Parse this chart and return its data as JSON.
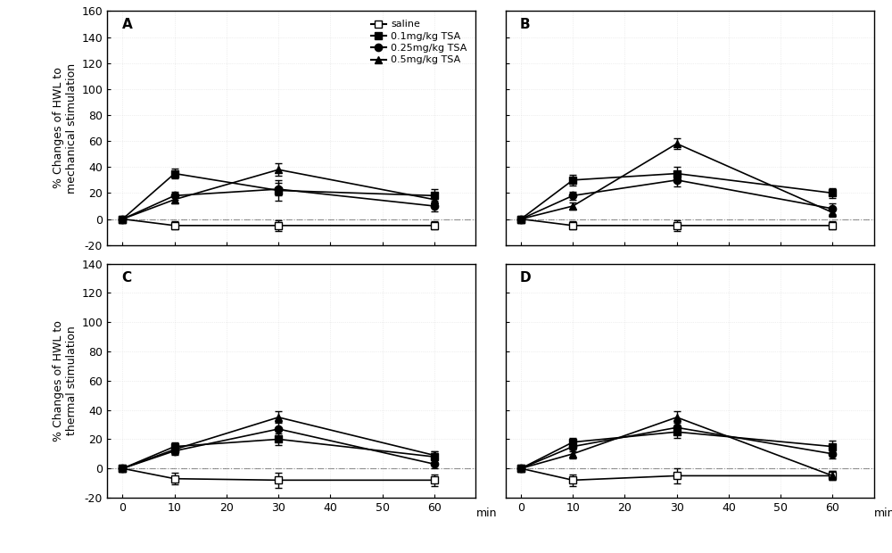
{
  "x": [
    0,
    10,
    30,
    60
  ],
  "legend_labels": [
    "saline",
    "0.1mg/kg TSA",
    "0.25mg/kg TSA",
    "0.5mg/kg TSA"
  ],
  "panel_labels": [
    "A",
    "B",
    "C",
    "D"
  ],
  "panels": {
    "A": {
      "ylabel": "% Changes of HWL to\nmechanical stimulation",
      "ylim": [
        -20,
        160
      ],
      "yticks": [
        -20,
        0,
        20,
        40,
        60,
        80,
        100,
        120,
        140,
        160
      ],
      "series": [
        {
          "y": [
            0,
            -5,
            -5,
            -5
          ],
          "yerr": [
            1,
            3,
            4,
            3
          ]
        },
        {
          "y": [
            0,
            35,
            22,
            18
          ],
          "yerr": [
            1,
            4,
            8,
            5
          ]
        },
        {
          "y": [
            0,
            18,
            23,
            10
          ],
          "yerr": [
            1,
            3,
            5,
            4
          ]
        },
        {
          "y": [
            0,
            15,
            38,
            15
          ],
          "yerr": [
            1,
            3,
            5,
            4
          ]
        }
      ]
    },
    "B": {
      "ylabel": "",
      "ylim": [
        -20,
        160
      ],
      "yticks": [
        -20,
        0,
        20,
        40,
        60,
        80,
        100,
        120,
        140,
        160
      ],
      "series": [
        {
          "y": [
            0,
            -5,
            -5,
            -5
          ],
          "yerr": [
            1,
            3,
            4,
            3
          ]
        },
        {
          "y": [
            0,
            30,
            35,
            20
          ],
          "yerr": [
            1,
            4,
            5,
            4
          ]
        },
        {
          "y": [
            0,
            18,
            30,
            8
          ],
          "yerr": [
            1,
            3,
            5,
            4
          ]
        },
        {
          "y": [
            0,
            10,
            58,
            5
          ],
          "yerr": [
            1,
            3,
            4,
            3
          ]
        }
      ]
    },
    "C": {
      "ylabel": "% Changes of HWL to\nthermal stimulation",
      "ylim": [
        -20,
        140
      ],
      "yticks": [
        -20,
        0,
        20,
        40,
        60,
        80,
        100,
        120,
        140
      ],
      "series": [
        {
          "y": [
            0,
            -7,
            -8,
            -8
          ],
          "yerr": [
            1,
            4,
            5,
            4
          ]
        },
        {
          "y": [
            0,
            15,
            20,
            8
          ],
          "yerr": [
            1,
            3,
            4,
            4
          ]
        },
        {
          "y": [
            0,
            12,
            27,
            3
          ],
          "yerr": [
            1,
            3,
            5,
            3
          ]
        },
        {
          "y": [
            0,
            13,
            35,
            9
          ],
          "yerr": [
            1,
            3,
            4,
            3
          ]
        }
      ]
    },
    "D": {
      "ylabel": "",
      "ylim": [
        -20,
        140
      ],
      "yticks": [
        -20,
        0,
        20,
        40,
        60,
        80,
        100,
        120,
        140
      ],
      "series": [
        {
          "y": [
            0,
            -8,
            -5,
            -5
          ],
          "yerr": [
            1,
            4,
            5,
            3
          ]
        },
        {
          "y": [
            0,
            18,
            25,
            15
          ],
          "yerr": [
            1,
            3,
            4,
            4
          ]
        },
        {
          "y": [
            0,
            15,
            28,
            10
          ],
          "yerr": [
            1,
            3,
            4,
            3
          ]
        },
        {
          "y": [
            0,
            10,
            35,
            -5
          ],
          "yerr": [
            1,
            3,
            4,
            3
          ]
        }
      ]
    }
  },
  "markers": [
    "s",
    "s",
    "o",
    "^"
  ],
  "fillstyles": [
    "none",
    "full",
    "full",
    "full"
  ],
  "line_color": "#000000",
  "background_color": "#ffffff",
  "font_size": 9,
  "label_font_size": 9
}
